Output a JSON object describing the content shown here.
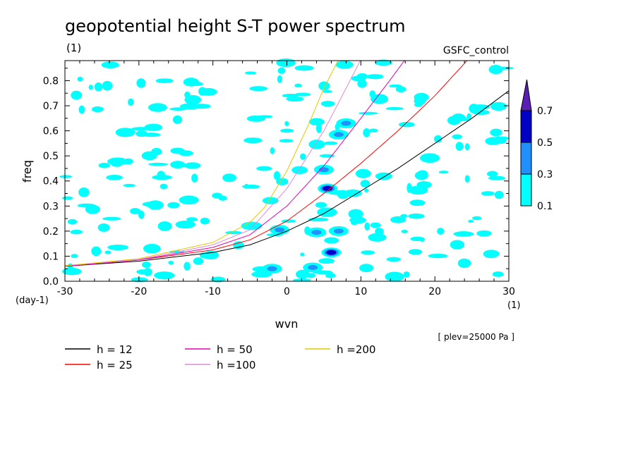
{
  "chart_data": {
    "type": "contour",
    "title": "geopotential height S-T power spectrum",
    "units_label": "(1)",
    "experiment": "GSFC_control",
    "xlabel": "wvn",
    "ylabel": "freq",
    "x_unit_label": "(1)",
    "y_unit_label": "(day-1)",
    "xlim": [
      -30,
      30
    ],
    "ylim": [
      0,
      0.88
    ],
    "x_ticks": [
      "-30",
      "-20",
      "-10",
      "0",
      "10",
      "20",
      "30"
    ],
    "y_ticks": [
      "0.0",
      "0.1",
      "0.2",
      "0.3",
      "0.4",
      "0.5",
      "0.6",
      "0.7",
      "0.8"
    ],
    "footnote": "[ plev=25000 Pa ]",
    "colorbar": {
      "levels": [
        "0.1",
        "0.3",
        "0.5",
        "0.7"
      ],
      "colors": [
        "#00ffff",
        "#1e90ff",
        "#0000c8",
        "#5a1eb4"
      ]
    },
    "dispersion_curves": [
      {
        "name": "h = 12",
        "color": "#000000",
        "points": [
          [
            -30,
            0.06
          ],
          [
            -20,
            0.08
          ],
          [
            -10,
            0.115
          ],
          [
            -5,
            0.145
          ],
          [
            0,
            0.2
          ],
          [
            5,
            0.27
          ],
          [
            10,
            0.36
          ],
          [
            15,
            0.45
          ],
          [
            20,
            0.55
          ],
          [
            25,
            0.65
          ],
          [
            30,
            0.76
          ]
        ]
      },
      {
        "name": "h = 25",
        "color": "#ff0000",
        "points": [
          [
            -30,
            0.06
          ],
          [
            -20,
            0.085
          ],
          [
            -10,
            0.125
          ],
          [
            -5,
            0.165
          ],
          [
            0,
            0.24
          ],
          [
            5,
            0.35
          ],
          [
            10,
            0.47
          ],
          [
            15,
            0.6
          ],
          [
            20,
            0.74
          ],
          [
            24.5,
            0.885
          ]
        ]
      },
      {
        "name": "h = 50",
        "color": "#e600b4",
        "points": [
          [
            -30,
            0.06
          ],
          [
            -20,
            0.085
          ],
          [
            -10,
            0.135
          ],
          [
            -5,
            0.185
          ],
          [
            0,
            0.3
          ],
          [
            5,
            0.46
          ],
          [
            10,
            0.65
          ],
          [
            14,
            0.805
          ],
          [
            16,
            0.885
          ]
        ]
      },
      {
        "name": "h =100",
        "color": "#dc8cdc",
        "points": [
          [
            -30,
            0.062
          ],
          [
            -20,
            0.087
          ],
          [
            -10,
            0.145
          ],
          [
            -5,
            0.205
          ],
          [
            0,
            0.37
          ],
          [
            5,
            0.6
          ],
          [
            8,
            0.77
          ],
          [
            10,
            0.885
          ]
        ]
      },
      {
        "name": "h =200",
        "color": "#e6c800",
        "points": [
          [
            -30,
            0.062
          ],
          [
            -20,
            0.09
          ],
          [
            -10,
            0.155
          ],
          [
            -5,
            0.235
          ],
          [
            -3,
            0.295
          ],
          [
            0,
            0.44
          ],
          [
            3,
            0.63
          ],
          [
            5,
            0.77
          ],
          [
            7,
            0.885
          ]
        ]
      }
    ],
    "contour_patches": [
      {
        "level": "0.5",
        "x": 6.0,
        "y": 0.115
      },
      {
        "level": "0.5",
        "x": 5.5,
        "y": 0.37
      },
      {
        "level": "0.3",
        "x": 7.0,
        "y": 0.2
      },
      {
        "level": "0.3",
        "x": 4.0,
        "y": 0.195
      },
      {
        "level": "0.3",
        "x": 3.5,
        "y": 0.055
      },
      {
        "level": "0.3",
        "x": 8.0,
        "y": 0.63
      },
      {
        "level": "0.3",
        "x": 7.0,
        "y": 0.585
      },
      {
        "level": "0.3",
        "x": -1.0,
        "y": 0.205
      },
      {
        "level": "0.3",
        "x": -2.0,
        "y": 0.05
      },
      {
        "level": "0.3",
        "x": 5.0,
        "y": 0.445
      }
    ]
  }
}
